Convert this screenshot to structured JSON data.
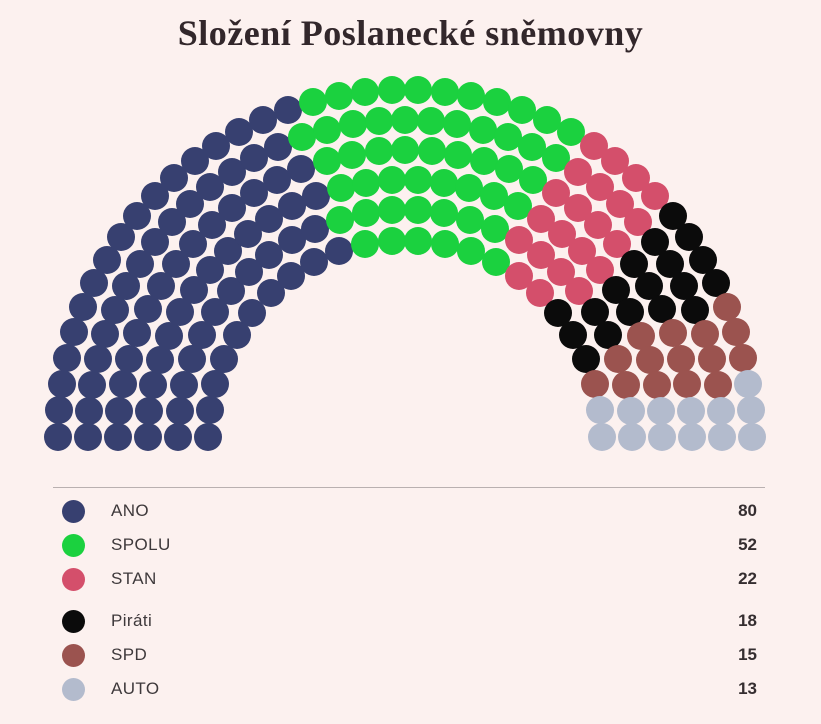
{
  "page": {
    "background": "#fcf1ef"
  },
  "title": "Složení Poslanecké sněmovny",
  "chart_data": {
    "type": "parliament",
    "title": "Složení Poslanecké sněmovny",
    "total_seats": 200,
    "series": [
      {
        "name": "ANO",
        "seats": 80,
        "color": "#374070"
      },
      {
        "name": "SPOLU",
        "seats": 52,
        "color": "#1bd13f"
      },
      {
        "name": "STAN",
        "seats": 22,
        "color": "#d44f6b"
      },
      {
        "name": "Piráti",
        "seats": 18,
        "color": "#0b0b0b"
      },
      {
        "name": "SPD",
        "seats": 15,
        "color": "#9b534f"
      },
      {
        "name": "AUTO",
        "seats": 13,
        "color": "#b3bbcd"
      }
    ],
    "layout": {
      "rows": 6,
      "row_seats": [
        24,
        28,
        32,
        35,
        39,
        42
      ],
      "arc_degrees": 180,
      "center_x": 405,
      "center_y": 437,
      "inner_radius": 197,
      "row_gap": 30,
      "seat_diameter": 28,
      "legend_position": "bottom",
      "legend_group_break_index": 3
    }
  }
}
